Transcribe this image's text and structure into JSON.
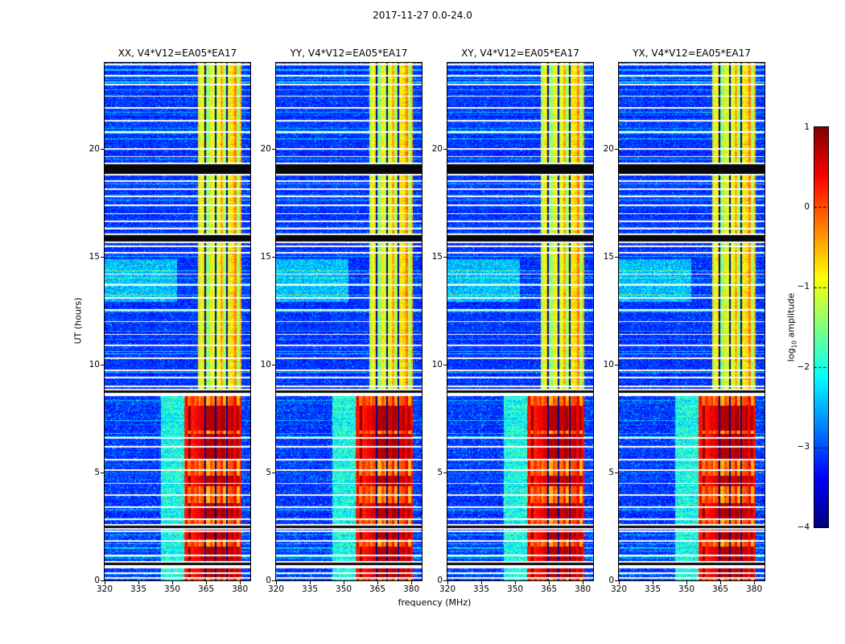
{
  "figure": {
    "title": "2017-11-27 0.0-24.0",
    "xlabel": "frequency (MHz)",
    "ylabel": "UT (hours)"
  },
  "panels": [
    {
      "title": "XX, V4*V12=EA05*EA17"
    },
    {
      "title": "YY, V4*V12=EA05*EA17"
    },
    {
      "title": "XY, V4*V12=EA05*EA17"
    },
    {
      "title": "YX, V4*V12=EA05*EA17"
    }
  ],
  "axes": {
    "x_ticks": [
      320,
      335,
      350,
      365,
      380
    ],
    "y_ticks": [
      0,
      5,
      10,
      15,
      20
    ],
    "x_range": [
      320,
      384.6
    ],
    "y_range": [
      0,
      24
    ]
  },
  "colorbar": {
    "label_prefix": "log",
    "label_sub": "10",
    "label_suffix": " amplitude",
    "ticks": [
      "1",
      "0",
      "−1",
      "−2",
      "−3",
      "−4"
    ],
    "tick_values": [
      1,
      0,
      -1,
      -2,
      -3,
      -4
    ],
    "range": [
      -4,
      1
    ],
    "colormap": "jet"
  },
  "chart_data": {
    "type": "heatmap",
    "title": "2017-11-27 0.0-24.0",
    "xlabel": "frequency (MHz)",
    "ylabel": "UT (hours)",
    "panels": [
      "XX, V4*V12=EA05*EA17",
      "YY, V4*V12=EA05*EA17",
      "XY, V4*V12=EA05*EA17",
      "YX, V4*V12=EA05*EA17"
    ],
    "x_range_mhz": [
      320,
      384.6
    ],
    "y_range_hours": [
      0,
      24
    ],
    "colormap": "jet",
    "value_range_log10_amplitude": [
      -4,
      1
    ],
    "features": {
      "background_level": [
        -3.45,
        -2.85
      ],
      "rfi_band_mhz": [
        361.5,
        380.8
      ],
      "rfi_band_level": [
        -1.5,
        -0.35
      ],
      "strong_emission_hours": [
        0,
        8.6
      ],
      "strong_emission_band_mhz": [
        355.5,
        380.8
      ],
      "strong_transition_mhz": [
        345,
        355.5
      ],
      "hot_blocks_hours": [
        [
          0.15,
          0.7
        ],
        [
          0.85,
          1.55
        ],
        [
          1.9,
          2.4
        ],
        [
          2.85,
          3.6
        ],
        [
          4.35,
          4.85
        ],
        [
          5.6,
          6.8
        ],
        [
          6.95,
          8.1
        ]
      ],
      "hot_block_level": [
        0.1,
        1.0
      ],
      "cyan_patch_hours": [
        [
          12.9,
          14.9
        ]
      ],
      "cyan_patch_max_mhz": 352,
      "flagged_channels_mhz": [
        364.6,
        369.3,
        374.3
      ],
      "flagged_rows_hours": [
        23.93,
        23.4,
        23.0,
        22.45,
        21.9,
        21.3,
        20.8,
        20.0,
        19.65,
        18.5,
        18.15,
        17.8,
        17.4,
        17.0,
        16.66,
        16.3,
        15.5,
        15.2,
        14.2,
        13.7,
        13.1,
        12.55,
        12.0,
        11.4,
        10.9,
        10.3,
        9.75,
        9.4,
        9.0,
        8.6,
        6.6,
        6.2,
        5.6,
        5.1,
        4.5,
        3.96,
        3.4,
        2.84,
        2.28,
        1.83,
        1.16,
        0.6,
        0.34,
        0.12
      ],
      "black_bands_hours": [
        [
          0.72,
          0.82
        ],
        [
          2.42,
          2.55
        ],
        [
          8.68,
          8.82
        ],
        [
          15.7,
          16.0
        ],
        [
          18.85,
          19.3
        ]
      ]
    },
    "render_seed": 20171127
  }
}
